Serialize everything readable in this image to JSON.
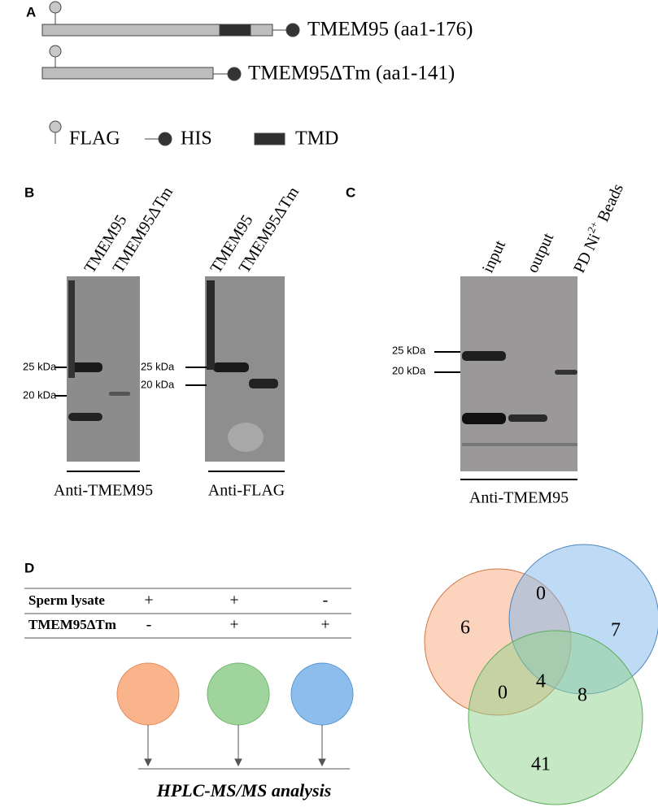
{
  "panels": {
    "a": {
      "label": "A",
      "constructs": [
        {
          "name": "TMEM95 (aa1-176)"
        },
        {
          "name": "TMEM95ΔTm (aa1-141)"
        }
      ],
      "legend": [
        "FLAG",
        "HIS",
        "TMD"
      ]
    },
    "b": {
      "label": "B",
      "blots": [
        {
          "lanes": [
            "TMEM95",
            "TMEM95ΔTm"
          ],
          "markers": [
            "25 kDa",
            "20 kDa"
          ],
          "antibody": "Anti-TMEM95"
        },
        {
          "lanes": [
            "TMEM95",
            "TMEM95ΔTm"
          ],
          "markers": [
            "25 kDa",
            "20 kDa"
          ],
          "antibody": "Anti-FLAG"
        }
      ]
    },
    "c": {
      "label": "C",
      "lanes": [
        "input",
        "output"
      ],
      "beads_lane": [
        "PD Ni",
        "2+",
        " Beads"
      ],
      "markers": [
        "25 kDa",
        "20 kDa"
      ],
      "antibody": "Anti-TMEM95"
    },
    "d": {
      "label": "D",
      "table": {
        "rows": [
          [
            "Sperm lysate",
            "+",
            "+",
            "-"
          ],
          [
            "TMEM95ΔTm",
            "-",
            "+",
            "+"
          ]
        ]
      },
      "analysis": "HPLC-MS/MS analysis",
      "venn": {
        "orange_only": 6,
        "orange_blue": 0,
        "blue_only": 7,
        "orange_green": 0,
        "all": 4,
        "blue_green": 8,
        "green_only": 41
      }
    }
  }
}
